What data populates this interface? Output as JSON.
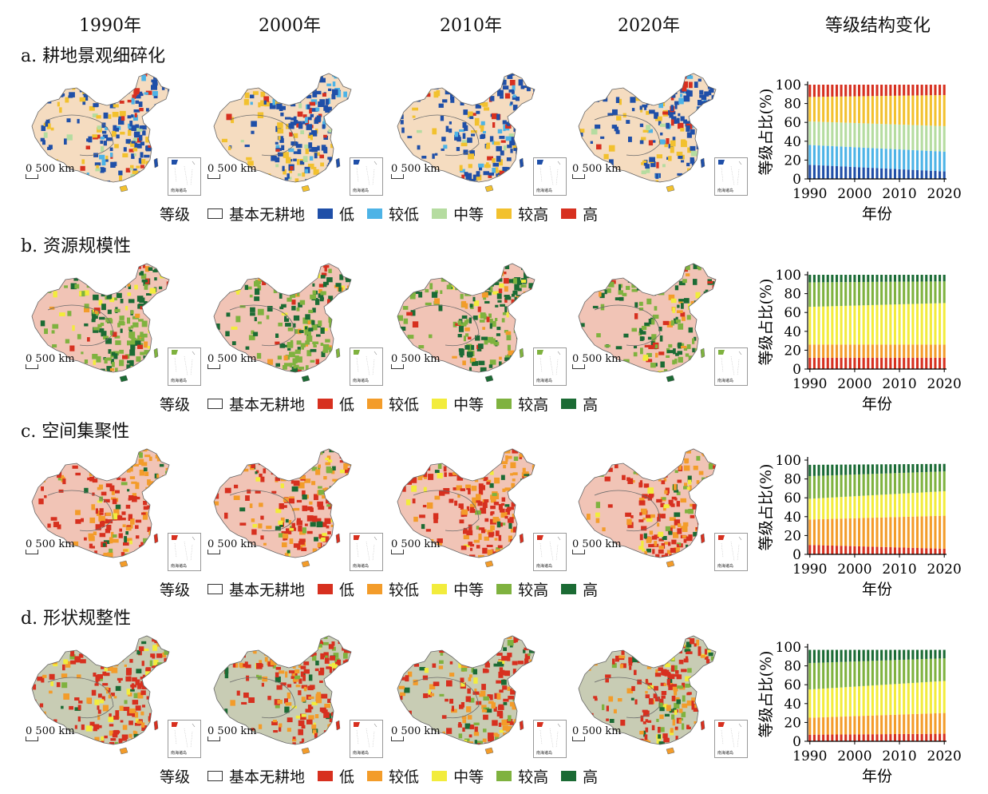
{
  "header": {
    "years": [
      "1990年",
      "2000年",
      "2010年",
      "2020年"
    ],
    "structure_title": "等级结构变化"
  },
  "scale_label": "500 km",
  "scale_zero": "0",
  "inset_caption": "南海诸岛",
  "rows": [
    {
      "title": "a. 耕地景观细碎化",
      "legend": {
        "label": "等级",
        "items": [
          {
            "name": "基本无耕地",
            "color": "#ffffff"
          },
          {
            "name": "低",
            "color": "#1f4fa8"
          },
          {
            "name": "较低",
            "color": "#4db3e6"
          },
          {
            "name": "中等",
            "color": "#b5dca0"
          },
          {
            "name": "较高",
            "color": "#f2c12e"
          },
          {
            "name": "高",
            "color": "#d7301f"
          }
        ]
      },
      "map_palette": {
        "background": "#f5dcc0",
        "dominant": [
          "#1f4fa8",
          "#f2c12e",
          "#d7301f",
          "#4db3e6",
          "#b5dca0"
        ]
      }
    },
    {
      "title": "b. 资源规模性",
      "legend": {
        "label": "等级",
        "items": [
          {
            "name": "基本无耕地",
            "color": "#ffffff"
          },
          {
            "name": "低",
            "color": "#d7301f"
          },
          {
            "name": "较低",
            "color": "#f39c2a"
          },
          {
            "name": "中等",
            "color": "#f2ec3c"
          },
          {
            "name": "较高",
            "color": "#7fb23f"
          },
          {
            "name": "高",
            "color": "#1b6b34"
          }
        ]
      },
      "map_palette": {
        "background": "#f1c4b6",
        "dominant": [
          "#7fb23f",
          "#1b6b34",
          "#f2ec3c",
          "#f39c2a",
          "#d7301f"
        ]
      }
    },
    {
      "title": "c. 空间集聚性",
      "legend": {
        "label": "等级",
        "items": [
          {
            "name": "基本无耕地",
            "color": "#ffffff"
          },
          {
            "name": "低",
            "color": "#d7301f"
          },
          {
            "name": "较低",
            "color": "#f39c2a"
          },
          {
            "name": "中等",
            "color": "#f2ec3c"
          },
          {
            "name": "较高",
            "color": "#7fb23f"
          },
          {
            "name": "高",
            "color": "#1b6b34"
          }
        ]
      },
      "map_palette": {
        "background": "#f1c4b6",
        "dominant": [
          "#d7301f",
          "#f39c2a",
          "#1b6b34",
          "#7fb23f",
          "#f2ec3c"
        ]
      }
    },
    {
      "title": "d. 形状规整性",
      "legend": {
        "label": "等级",
        "items": [
          {
            "name": "基本无耕地",
            "color": "#ffffff"
          },
          {
            "name": "低",
            "color": "#d7301f"
          },
          {
            "name": "较低",
            "color": "#f39c2a"
          },
          {
            "name": "中等",
            "color": "#f2ec3c"
          },
          {
            "name": "较高",
            "color": "#7fb23f"
          },
          {
            "name": "高",
            "color": "#1b6b34"
          }
        ]
      },
      "map_palette": {
        "background": "#c8ccb4",
        "dominant": [
          "#d7301f",
          "#f39c2a",
          "#7fb23f",
          "#f2ec3c",
          "#1b6b34"
        ]
      }
    }
  ],
  "chart_data": [
    {
      "type": "bar",
      "stacked": true,
      "xlabel": "年份",
      "ylabel": "等级占比(%)",
      "xticks": [
        "1990",
        "2000",
        "2010",
        "2020"
      ],
      "yticks": [
        0,
        20,
        40,
        60,
        80,
        100
      ],
      "ylim": [
        0,
        100
      ],
      "years_from": 1990,
      "years_to": 2020,
      "bars": 31,
      "series": [
        {
          "name": "低",
          "color": "#1f4fa8",
          "start": 15,
          "end": 8
        },
        {
          "name": "较低",
          "color": "#4db3e6",
          "start": 21,
          "end": 21
        },
        {
          "name": "中等",
          "color": "#b5dca0",
          "start": 25,
          "end": 27
        },
        {
          "name": "较高",
          "color": "#f2c12e",
          "start": 26,
          "end": 33
        },
        {
          "name": "高",
          "color": "#d7301f",
          "start": 13,
          "end": 11
        }
      ]
    },
    {
      "type": "bar",
      "stacked": true,
      "xlabel": "年份",
      "ylabel": "等级占比(%)",
      "xticks": [
        "1990",
        "2000",
        "2010",
        "2020"
      ],
      "yticks": [
        0,
        20,
        40,
        60,
        80,
        100
      ],
      "ylim": [
        0,
        100
      ],
      "years_from": 1990,
      "years_to": 2020,
      "bars": 31,
      "series": [
        {
          "name": "低",
          "color": "#d7301f",
          "start": 12,
          "end": 12
        },
        {
          "name": "较低",
          "color": "#f39c2a",
          "start": 14,
          "end": 14
        },
        {
          "name": "中等",
          "color": "#f2ec3c",
          "start": 40,
          "end": 44
        },
        {
          "name": "较高",
          "color": "#7fb23f",
          "start": 26,
          "end": 23
        },
        {
          "name": "高",
          "color": "#1b6b34",
          "start": 8,
          "end": 7
        }
      ]
    },
    {
      "type": "bar",
      "stacked": true,
      "xlabel": "年份",
      "ylabel": "等级占比(%)",
      "xticks": [
        "1990",
        "2000",
        "2010",
        "2020"
      ],
      "yticks": [
        0,
        20,
        40,
        60,
        80,
        100
      ],
      "ylim": [
        0,
        100
      ],
      "years_from": 1990,
      "years_to": 2020,
      "bars": 31,
      "series": [
        {
          "name": "低",
          "color": "#d7301f",
          "start": 10,
          "end": 6
        },
        {
          "name": "较低",
          "color": "#f39c2a",
          "start": 27,
          "end": 35
        },
        {
          "name": "中等",
          "color": "#f2ec3c",
          "start": 22,
          "end": 26
        },
        {
          "name": "较高",
          "color": "#7fb23f",
          "start": 24,
          "end": 21
        },
        {
          "name": "高",
          "color": "#1b6b34",
          "start": 12,
          "end": 8
        }
      ]
    },
    {
      "type": "bar",
      "stacked": true,
      "xlabel": "年份",
      "ylabel": "等级占比(%)",
      "xticks": [
        "1990",
        "2000",
        "2010",
        "2020"
      ],
      "yticks": [
        0,
        20,
        40,
        60,
        80,
        100
      ],
      "ylim": [
        0,
        100
      ],
      "years_from": 1990,
      "years_to": 2020,
      "bars": 31,
      "series": [
        {
          "name": "低",
          "color": "#d7301f",
          "start": 7,
          "end": 8
        },
        {
          "name": "较低",
          "color": "#f39c2a",
          "start": 18,
          "end": 22
        },
        {
          "name": "中等",
          "color": "#f2ec3c",
          "start": 30,
          "end": 34
        },
        {
          "name": "较高",
          "color": "#7fb23f",
          "start": 28,
          "end": 24
        },
        {
          "name": "高",
          "color": "#1b6b34",
          "start": 14,
          "end": 9
        }
      ]
    }
  ]
}
